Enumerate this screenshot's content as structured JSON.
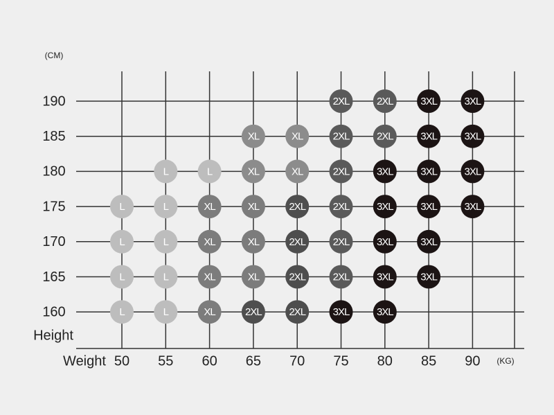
{
  "height_unit": "(CM)",
  "height_label": "Height",
  "weight_label": "Weight",
  "weight_unit": "(KG)",
  "weights": [
    50,
    55,
    60,
    65,
    70,
    75,
    80,
    85,
    90
  ],
  "rows": [
    {
      "height": 190,
      "cells": [
        null,
        null,
        null,
        null,
        null,
        {
          "size": "2XL",
          "color": "#5a5a5a"
        },
        {
          "size": "2XL",
          "color": "#5a5a5a"
        },
        {
          "size": "3XL",
          "color": "#1c1414"
        },
        {
          "size": "3XL",
          "color": "#1c1414"
        }
      ]
    },
    {
      "height": 185,
      "cells": [
        null,
        null,
        null,
        {
          "size": "XL",
          "color": "#8c8c8c"
        },
        {
          "size": "XL",
          "color": "#8c8c8c"
        },
        {
          "size": "2XL",
          "color": "#5a5a5a"
        },
        {
          "size": "2XL",
          "color": "#5a5a5a"
        },
        {
          "size": "3XL",
          "color": "#1c1414"
        },
        {
          "size": "3XL",
          "color": "#1c1414"
        }
      ]
    },
    {
      "height": 180,
      "cells": [
        null,
        {
          "size": "L",
          "color": "#bdbdbd"
        },
        {
          "size": "L",
          "color": "#bdbdbd"
        },
        {
          "size": "XL",
          "color": "#8c8c8c"
        },
        {
          "size": "XL",
          "color": "#8c8c8c"
        },
        {
          "size": "2XL",
          "color": "#5a5a5a"
        },
        {
          "size": "3XL",
          "color": "#1c1414"
        },
        {
          "size": "3XL",
          "color": "#1c1414"
        },
        {
          "size": "3XL",
          "color": "#1c1414"
        }
      ]
    },
    {
      "height": 175,
      "cells": [
        {
          "size": "L",
          "color": "#bdbdbd"
        },
        {
          "size": "L",
          "color": "#bdbdbd"
        },
        {
          "size": "XL",
          "color": "#7c7c7c"
        },
        {
          "size": "XL",
          "color": "#7c7c7c"
        },
        {
          "size": "2XL",
          "color": "#4e4e4e"
        },
        {
          "size": "2XL",
          "color": "#5a5a5a"
        },
        {
          "size": "3XL",
          "color": "#1c1414"
        },
        {
          "size": "3XL",
          "color": "#1c1414"
        },
        {
          "size": "3XL",
          "color": "#1c1414"
        }
      ]
    },
    {
      "height": 170,
      "cells": [
        {
          "size": "L",
          "color": "#bdbdbd"
        },
        {
          "size": "L",
          "color": "#bdbdbd"
        },
        {
          "size": "XL",
          "color": "#7c7c7c"
        },
        {
          "size": "XL",
          "color": "#7c7c7c"
        },
        {
          "size": "2XL",
          "color": "#4e4e4e"
        },
        {
          "size": "2XL",
          "color": "#5a5a5a"
        },
        {
          "size": "3XL",
          "color": "#1c1414"
        },
        {
          "size": "3XL",
          "color": "#1c1414"
        },
        null
      ]
    },
    {
      "height": 165,
      "cells": [
        {
          "size": "L",
          "color": "#bdbdbd"
        },
        {
          "size": "L",
          "color": "#bdbdbd"
        },
        {
          "size": "XL",
          "color": "#7c7c7c"
        },
        {
          "size": "XL",
          "color": "#7c7c7c"
        },
        {
          "size": "2XL",
          "color": "#4e4e4e"
        },
        {
          "size": "2XL",
          "color": "#5a5a5a"
        },
        {
          "size": "3XL",
          "color": "#1c1414"
        },
        {
          "size": "3XL",
          "color": "#1c1414"
        },
        null
      ]
    },
    {
      "height": 160,
      "cells": [
        {
          "size": "L",
          "color": "#bdbdbd"
        },
        {
          "size": "L",
          "color": "#bdbdbd"
        },
        {
          "size": "XL",
          "color": "#7c7c7c"
        },
        {
          "size": "2XL",
          "color": "#4e4e4e"
        },
        {
          "size": "2XL",
          "color": "#4e4e4e"
        },
        {
          "size": "3XL",
          "color": "#1c1414"
        },
        {
          "size": "3XL",
          "color": "#1c1414"
        },
        null,
        null
      ]
    }
  ]
}
